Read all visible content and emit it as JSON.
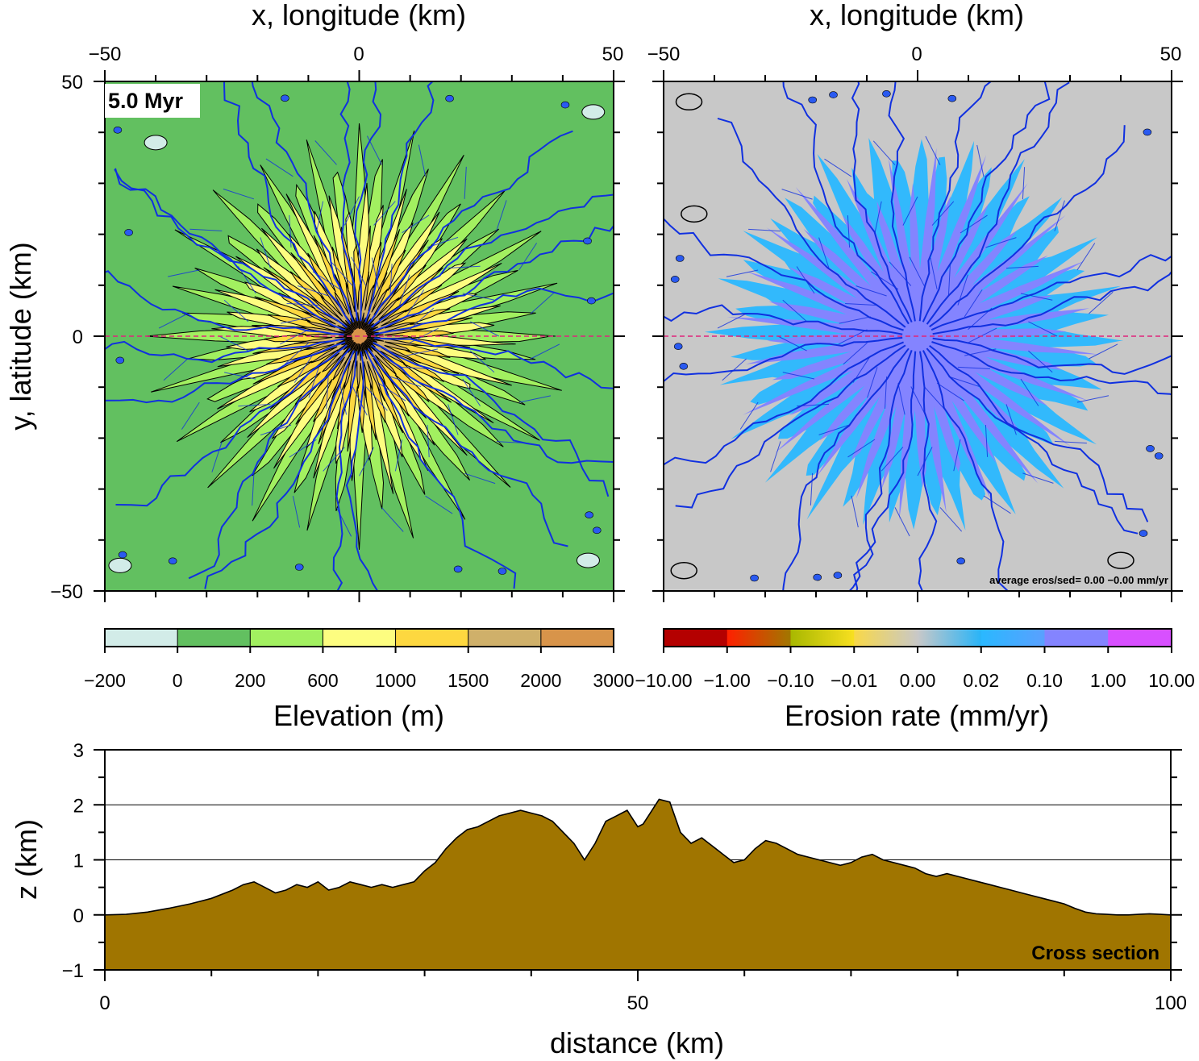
{
  "figure": {
    "time_label": "5.0 Myr",
    "legend_placement": "bottom",
    "colors": {
      "river": "#1030e0",
      "lake": "#2a5af0",
      "section_line": "#e0247a",
      "profile_fill": "#a07500",
      "contour": "#000000"
    }
  },
  "chart_data": [
    {
      "type": "heatmap",
      "xlabel": "x, longitude (km)",
      "ylabel": "y, latitude (km)",
      "xlim": [
        -50,
        50
      ],
      "ylim": [
        -50,
        50
      ],
      "x_ticks": [
        "−50",
        "0",
        "50"
      ],
      "y_ticks": [
        "50",
        "0",
        "−50"
      ],
      "colorbar": {
        "label": "Elevation (m)",
        "ticks": [
          "−200",
          "0",
          "200",
          "600",
          "1000",
          "1500",
          "2000",
          "3000"
        ],
        "colors": [
          "#d2ece8",
          "#62c060",
          "#a2f060",
          "#fdfd80",
          "#fdd840",
          "#cfb06a",
          "#d8944a"
        ]
      },
      "peak_elevation_m": 2100,
      "radial_ridges": 24
    },
    {
      "type": "heatmap",
      "xlabel": "x, longitude (km)",
      "xlim": [
        -50,
        50
      ],
      "ylim": [
        -50,
        50
      ],
      "x_ticks": [
        "−50",
        "0",
        "50"
      ],
      "annotation": "average eros/sed= 0.00 −0.00 mm/yr",
      "colorbar": {
        "label": "Erosion rate (mm/yr)",
        "ticks": [
          "−10.00",
          "−1.00",
          "−0.10",
          "−0.01",
          "0.00",
          "0.02",
          "0.10",
          "1.00",
          "10.00"
        ],
        "colors": [
          [
            "#b40000",
            "#b40000"
          ],
          [
            "#ff2000",
            "#a07800"
          ],
          [
            "#a8b800",
            "#f8e020"
          ],
          [
            "#f8d848",
            "#c8c8c8"
          ],
          [
            "#c8c8c8",
            "#28b4f8"
          ],
          [
            "#2ab8ff",
            "#5aa0ff"
          ],
          [
            "#8484ff",
            "#8484ff"
          ],
          [
            "#d850ff",
            "#d850ff"
          ]
        ]
      }
    },
    {
      "type": "area",
      "title": "Cross section",
      "xlabel": "distance (km)",
      "ylabel": "z (km)",
      "xlim": [
        0,
        100
      ],
      "ylim": [
        -1,
        3
      ],
      "x_ticks": [
        "0",
        "50",
        "100"
      ],
      "y_ticks": [
        "3",
        "2",
        "1",
        "0",
        "−1"
      ],
      "grid_y": [
        1,
        2
      ],
      "x": [
        0,
        2,
        4,
        6,
        8,
        10,
        12,
        13,
        14,
        15,
        16,
        17,
        18,
        19,
        20,
        21,
        22,
        23,
        24,
        25,
        26,
        27,
        28,
        29,
        30,
        31,
        32,
        33,
        34,
        35,
        36,
        37,
        38,
        39,
        40,
        41,
        42,
        43,
        44,
        45,
        46,
        47,
        48,
        48.5,
        49,
        49.5,
        50,
        50.5,
        51,
        51.5,
        52,
        53,
        54,
        55,
        56,
        57,
        58,
        59,
        60,
        61,
        62,
        63,
        64,
        65,
        66,
        67,
        68,
        69,
        70,
        71,
        72,
        73,
        74,
        75,
        76,
        77,
        78,
        79,
        80,
        81,
        82,
        83,
        84,
        85,
        86,
        87,
        88,
        89,
        90,
        91,
        92,
        93,
        94,
        95,
        96,
        97,
        98,
        99,
        100
      ],
      "y": [
        0.0,
        0.01,
        0.05,
        0.12,
        0.2,
        0.3,
        0.45,
        0.55,
        0.6,
        0.5,
        0.4,
        0.45,
        0.55,
        0.5,
        0.6,
        0.45,
        0.5,
        0.6,
        0.55,
        0.5,
        0.55,
        0.5,
        0.55,
        0.6,
        0.8,
        0.95,
        1.2,
        1.4,
        1.55,
        1.6,
        1.7,
        1.8,
        1.85,
        1.9,
        1.85,
        1.8,
        1.7,
        1.5,
        1.3,
        1.0,
        1.3,
        1.7,
        1.8,
        1.85,
        1.9,
        1.75,
        1.6,
        1.65,
        1.8,
        1.95,
        2.1,
        2.05,
        1.5,
        1.3,
        1.4,
        1.25,
        1.1,
        0.95,
        1.0,
        1.2,
        1.35,
        1.3,
        1.2,
        1.1,
        1.05,
        1.0,
        0.95,
        0.9,
        0.95,
        1.05,
        1.1,
        1.0,
        0.95,
        0.9,
        0.85,
        0.75,
        0.7,
        0.75,
        0.7,
        0.65,
        0.6,
        0.55,
        0.5,
        0.45,
        0.4,
        0.35,
        0.3,
        0.25,
        0.2,
        0.12,
        0.05,
        0.02,
        0.01,
        0.0,
        0.0,
        0.01,
        0.02,
        0.01,
        0.0
      ]
    }
  ]
}
